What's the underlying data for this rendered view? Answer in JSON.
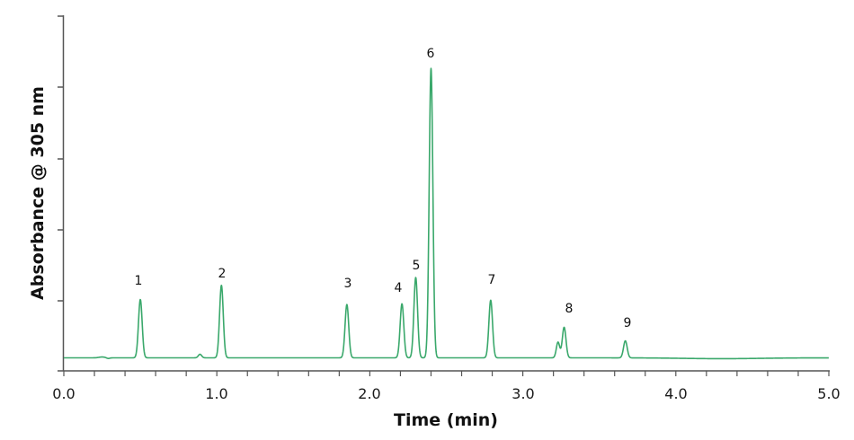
{
  "chart_data": {
    "type": "line",
    "title": "",
    "xlabel": "Time (min)",
    "ylabel": "Absorbance @ 305 nm",
    "xlim": [
      0.0,
      5.0
    ],
    "ylim": [
      0,
      5
    ],
    "x_ticks": [
      "0.0",
      "1.0",
      "2.0",
      "3.0",
      "4.0",
      "5.0"
    ],
    "y_ticks_labeled": false,
    "grid": false,
    "legend": null,
    "line_color": "#3aa86b",
    "peaks": [
      {
        "label": "1",
        "time": 0.5,
        "height": 0.82
      },
      {
        "label": "2",
        "time": 1.03,
        "height": 1.02
      },
      {
        "label": "3",
        "time": 1.85,
        "height": 0.75
      },
      {
        "label": "4",
        "time": 2.21,
        "height": 0.76
      },
      {
        "label": "5",
        "time": 2.3,
        "height": 1.13
      },
      {
        "label": "6",
        "time": 2.4,
        "height": 4.07
      },
      {
        "label": "7",
        "time": 2.79,
        "height": 0.81
      },
      {
        "label": "8",
        "time": 3.27,
        "height": 0.43
      },
      {
        "label": "9",
        "time": 3.67,
        "height": 0.24
      }
    ],
    "minor_features": [
      {
        "time": 0.89,
        "height": 0.05
      },
      {
        "time": 3.23,
        "height": 0.22
      }
    ]
  },
  "labels": {
    "xlabel": "Time (min)",
    "ylabel": "Absorbance @ 305 nm",
    "x_ticks": [
      "0.0",
      "1.0",
      "2.0",
      "3.0",
      "4.0",
      "5.0"
    ],
    "peaks": [
      "1",
      "2",
      "3",
      "4",
      "5",
      "6",
      "7",
      "8",
      "9"
    ]
  }
}
